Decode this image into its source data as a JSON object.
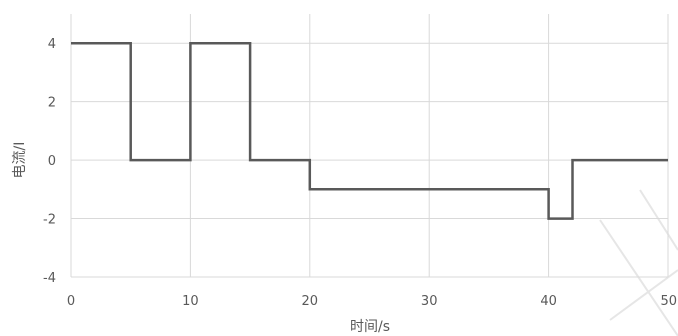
{
  "chart_data": {
    "type": "line",
    "step": true,
    "title": "",
    "xlabel": "时间/s",
    "ylabel": "电流/I",
    "xlim": [
      0,
      50
    ],
    "ylim": [
      -4,
      5
    ],
    "x_ticks": [
      0,
      10,
      20,
      30,
      40,
      50
    ],
    "y_ticks": [
      -4,
      -2,
      0,
      2,
      4
    ],
    "grid": true,
    "series": [
      {
        "color": "#595959",
        "x": [
          0,
          5,
          5,
          10,
          10,
          15,
          15,
          20,
          20,
          40,
          40,
          42,
          42,
          50
        ],
        "y": [
          4,
          4,
          0,
          0,
          4,
          4,
          0,
          0,
          -1,
          -1,
          -2,
          -2,
          0,
          0
        ]
      }
    ]
  }
}
